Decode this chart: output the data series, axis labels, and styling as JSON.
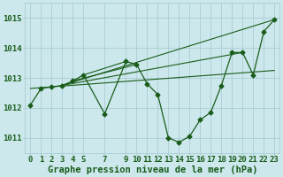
{
  "title": "Graphe pression niveau de la mer (hPa)",
  "background_color": "#cce8ec",
  "grid_color": "#aacdd4",
  "line_color": "#1a5c1a",
  "xlim": [
    -0.5,
    23.5
  ],
  "ylim": [
    1010.5,
    1015.5
  ],
  "yticks": [
    1011,
    1012,
    1013,
    1014,
    1015
  ],
  "xticks": [
    0,
    1,
    2,
    3,
    4,
    5,
    7,
    9,
    10,
    11,
    12,
    13,
    14,
    15,
    16,
    17,
    18,
    19,
    20,
    21,
    22,
    23
  ],
  "series": {
    "main": {
      "x": [
        0,
        1,
        2,
        3,
        4,
        5,
        7,
        9,
        10,
        11,
        12,
        13,
        14,
        15,
        16,
        17,
        18,
        19,
        20,
        21,
        22,
        23
      ],
      "y": [
        1012.1,
        1012.65,
        1012.7,
        1012.75,
        1012.9,
        1013.1,
        1011.8,
        1013.55,
        1013.45,
        1012.8,
        1012.45,
        1011.0,
        1010.85,
        1011.05,
        1011.6,
        1011.85,
        1012.75,
        1013.85,
        1013.85,
        1013.1,
        1014.55,
        1014.95
      ]
    },
    "line1": {
      "x": [
        0,
        23
      ],
      "y": [
        1012.65,
        1013.25
      ]
    },
    "line2": {
      "x": [
        3,
        23
      ],
      "y": [
        1012.75,
        1014.95
      ]
    },
    "line3": {
      "x": [
        3,
        20
      ],
      "y": [
        1012.75,
        1013.85
      ]
    },
    "line4": {
      "x": [
        4,
        10
      ],
      "y": [
        1012.9,
        1013.45
      ]
    },
    "line5": {
      "x": [
        5,
        9
      ],
      "y": [
        1013.1,
        1013.55
      ]
    }
  },
  "tick_fontsize": 6.5,
  "xlabel_fontsize": 7.5
}
